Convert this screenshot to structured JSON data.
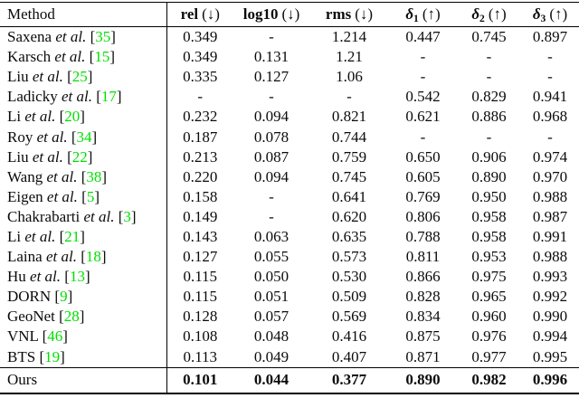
{
  "colors": {
    "citation_link": "#00e000",
    "text": "#0b0b0b",
    "rule": "#000000",
    "background": "#ffffff"
  },
  "table": {
    "citation_brackets": [
      "[",
      "]"
    ],
    "header": [
      {
        "label": "Method",
        "sub": "",
        "dir": "",
        "bold": false,
        "italic": false
      },
      {
        "label": "rel",
        "sub": "",
        "dir": "(↓)",
        "bold": true,
        "italic": false
      },
      {
        "label": "log10",
        "sub": "",
        "dir": "(↓)",
        "bold": true,
        "italic": false
      },
      {
        "label": "rms",
        "sub": "",
        "dir": "(↓)",
        "bold": true,
        "italic": false
      },
      {
        "label": "δ",
        "sub": "1",
        "dir": "(↑)",
        "bold": true,
        "italic": true
      },
      {
        "label": "δ",
        "sub": "2",
        "dir": "(↑)",
        "bold": true,
        "italic": true
      },
      {
        "label": "δ",
        "sub": "3",
        "dir": "(↑)",
        "bold": true,
        "italic": true
      }
    ],
    "rows": [
      {
        "method": "Saxena",
        "etal": "et al.",
        "cite": "35",
        "bold": false,
        "values": [
          "0.349",
          "-",
          "1.214",
          "0.447",
          "0.745",
          "0.897"
        ]
      },
      {
        "method": "Karsch",
        "etal": "et al.",
        "cite": "15",
        "bold": false,
        "values": [
          "0.349",
          "0.131",
          "1.21",
          "-",
          "-",
          "-"
        ]
      },
      {
        "method": "Liu",
        "etal": "et al.",
        "cite": "25",
        "bold": false,
        "values": [
          "0.335",
          "0.127",
          "1.06",
          "-",
          "-",
          "-"
        ]
      },
      {
        "method": "Ladicky",
        "etal": "et al.",
        "cite": "17",
        "bold": false,
        "values": [
          "-",
          "-",
          "-",
          "0.542",
          "0.829",
          "0.941"
        ]
      },
      {
        "method": "Li",
        "etal": "et al.",
        "cite": "20",
        "bold": false,
        "values": [
          "0.232",
          "0.094",
          "0.821",
          "0.621",
          "0.886",
          "0.968"
        ]
      },
      {
        "method": "Roy",
        "etal": "et al.",
        "cite": "34",
        "bold": false,
        "values": [
          "0.187",
          "0.078",
          "0.744",
          "-",
          "-",
          "-"
        ]
      },
      {
        "method": "Liu",
        "etal": "et al.",
        "cite": "22",
        "bold": false,
        "values": [
          "0.213",
          "0.087",
          "0.759",
          "0.650",
          "0.906",
          "0.974"
        ]
      },
      {
        "method": "Wang",
        "etal": "et al.",
        "cite": "38",
        "bold": false,
        "values": [
          "0.220",
          "0.094",
          "0.745",
          "0.605",
          "0.890",
          "0.970"
        ]
      },
      {
        "method": "Eigen",
        "etal": "et al.",
        "cite": "5",
        "bold": false,
        "values": [
          "0.158",
          "-",
          "0.641",
          "0.769",
          "0.950",
          "0.988"
        ]
      },
      {
        "method": "Chakrabarti",
        "etal": "et al.",
        "cite": "3",
        "bold": false,
        "values": [
          "0.149",
          "-",
          "0.620",
          "0.806",
          "0.958",
          "0.987"
        ]
      },
      {
        "method": "Li",
        "etal": "et al.",
        "cite": "21",
        "bold": false,
        "values": [
          "0.143",
          "0.063",
          "0.635",
          "0.788",
          "0.958",
          "0.991"
        ]
      },
      {
        "method": "Laina",
        "etal": "et al.",
        "cite": "18",
        "bold": false,
        "values": [
          "0.127",
          "0.055",
          "0.573",
          "0.811",
          "0.953",
          "0.988"
        ]
      },
      {
        "method": "Hu",
        "etal": "et al.",
        "cite": "13",
        "bold": false,
        "values": [
          "0.115",
          "0.050",
          "0.530",
          "0.866",
          "0.975",
          "0.993"
        ]
      },
      {
        "method": "DORN",
        "etal": "",
        "cite": "9",
        "bold": false,
        "values": [
          "0.115",
          "0.051",
          "0.509",
          "0.828",
          "0.965",
          "0.992"
        ]
      },
      {
        "method": "GeoNet",
        "etal": "",
        "cite": "28",
        "bold": false,
        "values": [
          "0.128",
          "0.057",
          "0.569",
          "0.834",
          "0.960",
          "0.990"
        ]
      },
      {
        "method": "VNL",
        "etal": "",
        "cite": "46",
        "bold": false,
        "values": [
          "0.108",
          "0.048",
          "0.416",
          "0.875",
          "0.976",
          "0.994"
        ]
      },
      {
        "method": "BTS",
        "etal": "",
        "cite": "19",
        "bold": false,
        "values": [
          "0.113",
          "0.049",
          "0.407",
          "0.871",
          "0.977",
          "0.995"
        ]
      },
      {
        "method": "Ours",
        "etal": "",
        "cite": "",
        "bold": true,
        "values": [
          "0.101",
          "0.044",
          "0.377",
          "0.890",
          "0.982",
          "0.996"
        ]
      }
    ]
  },
  "chart_data": {
    "type": "table",
    "title": "Depth estimation metrics comparison",
    "columns": [
      "Method",
      "rel (↓)",
      "log10 (↓)",
      "rms (↓)",
      "δ1 (↑)",
      "δ2 (↑)",
      "δ3 (↑)"
    ],
    "rows": [
      [
        "Saxena et al. [35]",
        "0.349",
        "-",
        "1.214",
        "0.447",
        "0.745",
        "0.897"
      ],
      [
        "Karsch et al. [15]",
        "0.349",
        "0.131",
        "1.21",
        "-",
        "-",
        "-"
      ],
      [
        "Liu et al. [25]",
        "0.335",
        "0.127",
        "1.06",
        "-",
        "-",
        "-"
      ],
      [
        "Ladicky et al. [17]",
        "-",
        "-",
        "-",
        "0.542",
        "0.829",
        "0.941"
      ],
      [
        "Li et al. [20]",
        "0.232",
        "0.094",
        "0.821",
        "0.621",
        "0.886",
        "0.968"
      ],
      [
        "Roy et al. [34]",
        "0.187",
        "0.078",
        "0.744",
        "-",
        "-",
        "-"
      ],
      [
        "Liu et al. [22]",
        "0.213",
        "0.087",
        "0.759",
        "0.650",
        "0.906",
        "0.974"
      ],
      [
        "Wang et al. [38]",
        "0.220",
        "0.094",
        "0.745",
        "0.605",
        "0.890",
        "0.970"
      ],
      [
        "Eigen et al. [5]",
        "0.158",
        "-",
        "0.641",
        "0.769",
        "0.950",
        "0.988"
      ],
      [
        "Chakrabarti et al. [3]",
        "0.149",
        "-",
        "0.620",
        "0.806",
        "0.958",
        "0.987"
      ],
      [
        "Li et al. [21]",
        "0.143",
        "0.063",
        "0.635",
        "0.788",
        "0.958",
        "0.991"
      ],
      [
        "Laina et al. [18]",
        "0.127",
        "0.055",
        "0.573",
        "0.811",
        "0.953",
        "0.988"
      ],
      [
        "Hu et al. [13]",
        "0.115",
        "0.050",
        "0.530",
        "0.866",
        "0.975",
        "0.993"
      ],
      [
        "DORN [9]",
        "0.115",
        "0.051",
        "0.509",
        "0.828",
        "0.965",
        "0.992"
      ],
      [
        "GeoNet [28]",
        "0.128",
        "0.057",
        "0.569",
        "0.834",
        "0.960",
        "0.990"
      ],
      [
        "VNL [46]",
        "0.108",
        "0.048",
        "0.416",
        "0.875",
        "0.976",
        "0.994"
      ],
      [
        "BTS [19]",
        "0.113",
        "0.049",
        "0.407",
        "0.871",
        "0.977",
        "0.995"
      ],
      [
        "Ours",
        "0.101",
        "0.044",
        "0.377",
        "0.890",
        "0.982",
        "0.996"
      ]
    ]
  }
}
